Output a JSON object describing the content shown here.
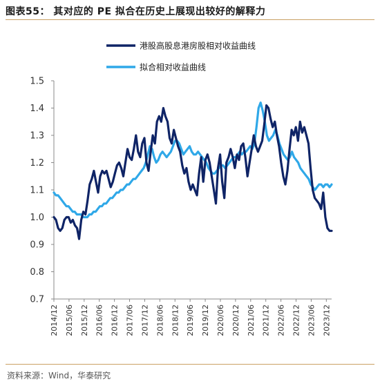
{
  "title": "图表55： 其对应的 PE 拟合在历史上展现出较好的解释力",
  "source": "资料来源：Wind，华泰研究",
  "colors": {
    "accent_rule": "#c9a063"
  },
  "chart_data": {
    "type": "line",
    "ylim": [
      0.7,
      1.5
    ],
    "yticks": [
      "1.5",
      "1.4",
      "1.3",
      "1.2",
      "1.1",
      "1.0",
      "0.9",
      "0.8",
      "0.7"
    ],
    "xticks": [
      "2014/12",
      "2015/06",
      "2015/12",
      "2016/06",
      "2016/12",
      "2017/06",
      "2017/12",
      "2018/06",
      "2018/12",
      "2019/06",
      "2019/12",
      "2020/06",
      "2020/12",
      "2021/06",
      "2021/12",
      "2022/06",
      "2022/12",
      "2023/06",
      "2023/12"
    ],
    "legend_position": "top",
    "series": [
      {
        "name": "港股高股息港房股相对收益曲线",
        "color": "#0f2466",
        "values": [
          1.0,
          0.99,
          0.96,
          0.95,
          0.96,
          0.99,
          1.0,
          1.0,
          0.98,
          0.99,
          0.97,
          0.96,
          0.92,
          0.99,
          1.02,
          1.01,
          1.06,
          1.12,
          1.14,
          1.17,
          1.13,
          1.09,
          1.15,
          1.17,
          1.16,
          1.17,
          1.14,
          1.11,
          1.13,
          1.16,
          1.19,
          1.2,
          1.18,
          1.15,
          1.2,
          1.25,
          1.22,
          1.21,
          1.25,
          1.3,
          1.24,
          1.22,
          1.27,
          1.29,
          1.2,
          1.17,
          1.24,
          1.3,
          1.27,
          1.35,
          1.37,
          1.35,
          1.4,
          1.37,
          1.35,
          1.29,
          1.27,
          1.32,
          1.29,
          1.26,
          1.24,
          1.19,
          1.16,
          1.18,
          1.13,
          1.1,
          1.12,
          1.1,
          1.08,
          1.16,
          1.22,
          1.13,
          1.21,
          1.23,
          1.2,
          1.15,
          1.1,
          1.05,
          1.18,
          1.23,
          1.13,
          1.07,
          1.2,
          1.22,
          1.25,
          1.22,
          1.18,
          1.23,
          1.21,
          1.26,
          1.27,
          1.22,
          1.15,
          1.2,
          1.25,
          1.3,
          1.26,
          1.24,
          1.26,
          1.28,
          1.34,
          1.41,
          1.4,
          1.36,
          1.33,
          1.35,
          1.3,
          1.26,
          1.2,
          1.15,
          1.12,
          1.17,
          1.25,
          1.32,
          1.3,
          1.33,
          1.28,
          1.35,
          1.31,
          1.33,
          1.3,
          1.27,
          1.18,
          1.1,
          1.07,
          1.06,
          1.05,
          1.03,
          1.09,
          1.0,
          0.96,
          0.95,
          0.95
        ]
      },
      {
        "name": "拟合相对收益曲线",
        "color": "#2fa8e8",
        "values": [
          1.09,
          1.08,
          1.08,
          1.07,
          1.06,
          1.05,
          1.04,
          1.04,
          1.03,
          1.02,
          1.02,
          1.01,
          1.01,
          1.01,
          1.0,
          1.0,
          1.0,
          1.01,
          1.01,
          1.02,
          1.02,
          1.03,
          1.04,
          1.04,
          1.05,
          1.05,
          1.06,
          1.07,
          1.07,
          1.08,
          1.09,
          1.09,
          1.1,
          1.1,
          1.11,
          1.12,
          1.12,
          1.13,
          1.14,
          1.14,
          1.15,
          1.16,
          1.17,
          1.18,
          1.2,
          1.23,
          1.26,
          1.25,
          1.22,
          1.2,
          1.21,
          1.23,
          1.24,
          1.23,
          1.22,
          1.23,
          1.24,
          1.26,
          1.28,
          1.28,
          1.27,
          1.25,
          1.23,
          1.24,
          1.25,
          1.26,
          1.24,
          1.23,
          1.23,
          1.24,
          1.23,
          1.22,
          1.21,
          1.2,
          1.18,
          1.17,
          1.16,
          1.16,
          1.17,
          1.18,
          1.19,
          1.19,
          1.18,
          1.19,
          1.2,
          1.21,
          1.22,
          1.22,
          1.23,
          1.24,
          1.23,
          1.24,
          1.24,
          1.25,
          1.26,
          1.25,
          1.27,
          1.33,
          1.4,
          1.42,
          1.39,
          1.35,
          1.3,
          1.28,
          1.29,
          1.3,
          1.32,
          1.3,
          1.27,
          1.25,
          1.23,
          1.22,
          1.21,
          1.22,
          1.24,
          1.22,
          1.21,
          1.2,
          1.18,
          1.17,
          1.16,
          1.15,
          1.14,
          1.12,
          1.11,
          1.1,
          1.11,
          1.12,
          1.12,
          1.11,
          1.12,
          1.12,
          1.11,
          1.12
        ]
      }
    ]
  }
}
